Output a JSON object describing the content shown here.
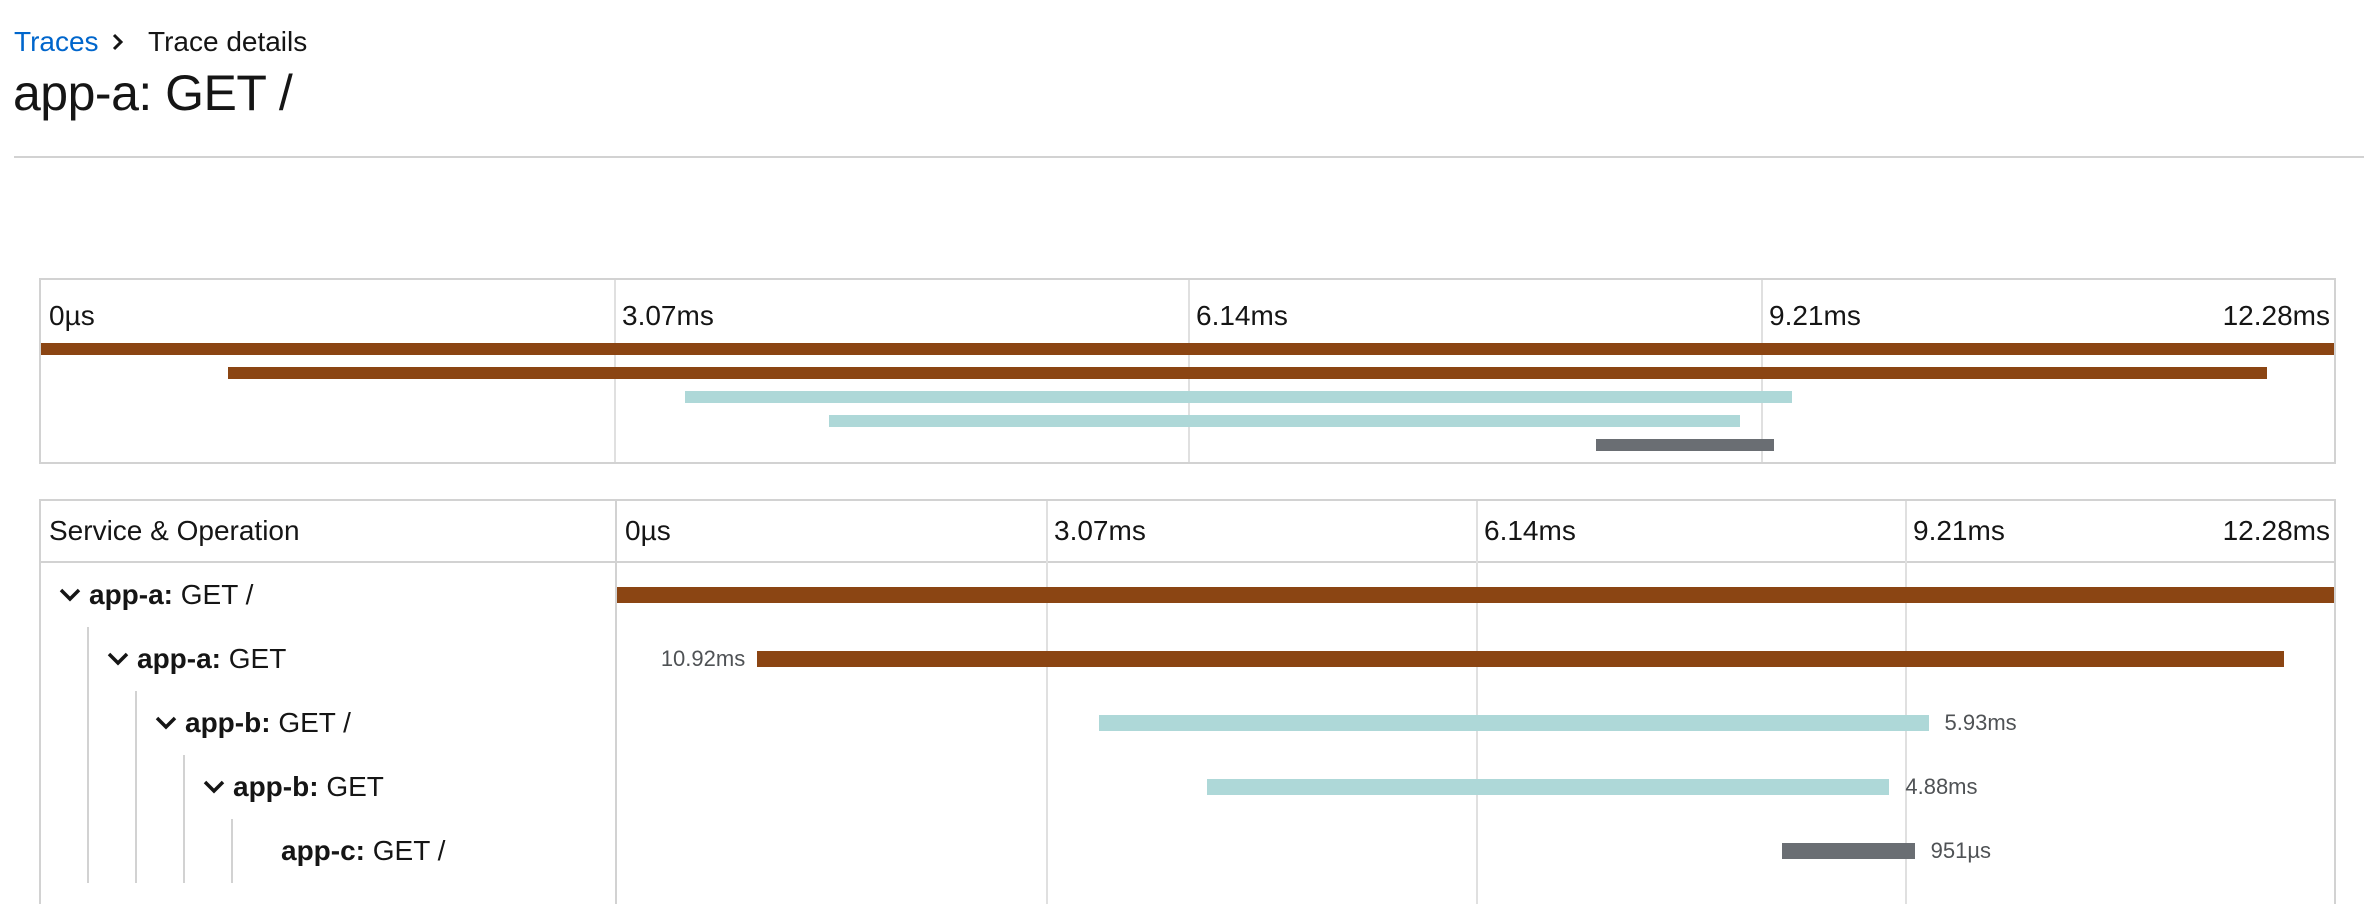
{
  "breadcrumb": {
    "traces_link": "Traces",
    "current": "Trace details"
  },
  "title": "app-a: GET /",
  "colors": {
    "app-a": "#8b4513",
    "app-b": "#aed8d8",
    "app-c": "#6a6e73"
  },
  "timeline": {
    "ticks": [
      "0µs",
      "3.07ms",
      "6.14ms",
      "9.21ms",
      "12.28ms"
    ],
    "total_ms": 12.28
  },
  "table": {
    "service_header": "Service & Operation"
  },
  "spans": [
    {
      "service": "app-a:",
      "operation": "GET /",
      "start_ms": 0.0,
      "duration_ms": 12.28,
      "duration_label": "",
      "label_side": "none",
      "color_key": "app-a"
    },
    {
      "service": "app-a:",
      "operation": "GET",
      "start_ms": 1.0,
      "duration_ms": 10.92,
      "duration_label": "10.92ms",
      "label_side": "left",
      "color_key": "app-a"
    },
    {
      "service": "app-b:",
      "operation": "GET /",
      "start_ms": 3.45,
      "duration_ms": 5.93,
      "duration_label": "5.93ms",
      "label_side": "right",
      "color_key": "app-b"
    },
    {
      "service": "app-b:",
      "operation": "GET",
      "start_ms": 4.22,
      "duration_ms": 4.88,
      "duration_label": "4.88ms",
      "label_side": "right",
      "color_key": "app-b"
    },
    {
      "service": "app-c:",
      "operation": "GET /",
      "start_ms": 8.33,
      "duration_ms": 0.951,
      "duration_label": "951µs",
      "label_side": "right",
      "color_key": "app-c"
    }
  ]
}
